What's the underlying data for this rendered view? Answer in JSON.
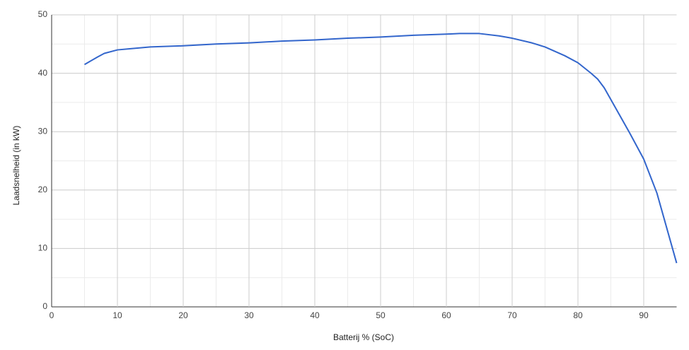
{
  "chart_data": {
    "type": "line",
    "x_label": "Batterij % (SoC)",
    "y_label": "Laadsnelheid (in kW)",
    "x": [
      5,
      7,
      8,
      10,
      12,
      15,
      20,
      25,
      30,
      35,
      40,
      45,
      50,
      55,
      60,
      62,
      65,
      68,
      70,
      73,
      75,
      78,
      80,
      82,
      83,
      84,
      86,
      88,
      90,
      92,
      95
    ],
    "series": [
      {
        "color": "#3366cc",
        "values": [
          41.5,
          42.8,
          43.4,
          44,
          44.2,
          44.5,
          44.7,
          45,
          45.2,
          45.5,
          45.7,
          46,
          46.2,
          46.5,
          46.7,
          46.8,
          46.8,
          46.4,
          46,
          45.2,
          44.5,
          43,
          41.8,
          40,
          39,
          37.5,
          33.5,
          29.5,
          25.3,
          19.5,
          7.5
        ]
      }
    ],
    "xlim": [
      0,
      95
    ],
    "ylim": [
      0,
      50
    ],
    "xticks": [
      0,
      10,
      20,
      30,
      40,
      50,
      60,
      70,
      80,
      90
    ],
    "yticks": [
      0,
      10,
      20,
      30,
      40,
      50
    ],
    "grid": true,
    "minor_grid": true
  }
}
